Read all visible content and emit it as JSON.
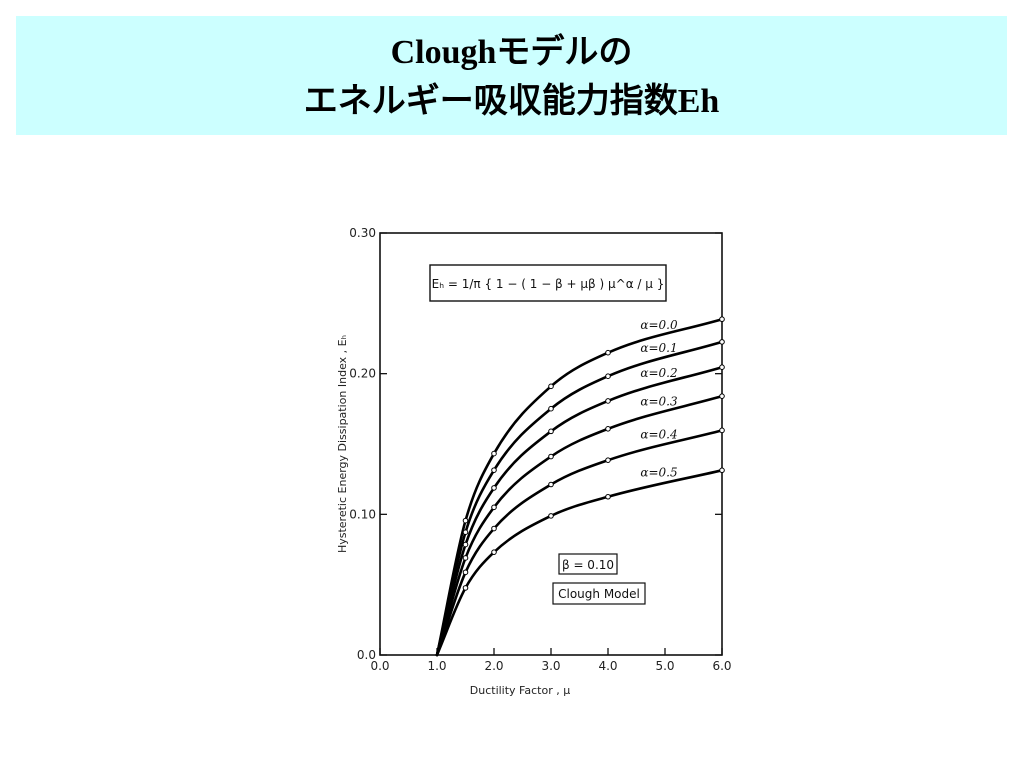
{
  "slide": {
    "title_line1": "Cloughモデルの",
    "title_line2": "エネルギー吸収能力指数Eh",
    "band_color": "#ccffff"
  },
  "chart_data": {
    "type": "line",
    "xlabel": "Ductility Factor , μ",
    "ylabel": "Hysteretic Energy Dissipation Index , Eₕ",
    "xlim": [
      0.0,
      6.0
    ],
    "ylim": [
      0.0,
      0.3
    ],
    "x_ticks": [
      "0.0",
      "1.0",
      "2.0",
      "3.0",
      "4.0",
      "5.0",
      "6.0"
    ],
    "y_ticks": [
      "0.0",
      "0.10",
      "0.20",
      "0.30"
    ],
    "grid": false,
    "formula": "Eₕ = 1/π { 1 − ( 1 − β + μβ ) μ^α / μ }",
    "beta_label": "β = 0.10",
    "model_label": "Clough Model",
    "x": [
      1.0,
      1.5,
      2.0,
      3.0,
      4.0,
      6.0
    ],
    "series": [
      {
        "name": "α=0.0",
        "values": [
          0.0,
          0.0955,
          0.1432,
          0.191,
          0.2149,
          0.2387
        ]
      },
      {
        "name": "α=0.1",
        "values": [
          0.0,
          0.0873,
          0.1314,
          0.1751,
          0.1982,
          0.2226
        ]
      },
      {
        "name": "α=0.2",
        "values": [
          0.0,
          0.0785,
          0.1188,
          0.159,
          0.1806,
          0.2046
        ]
      },
      {
        "name": "α=0.3",
        "values": [
          0.0,
          0.069,
          0.105,
          0.1411,
          0.1608,
          0.184
        ]
      },
      {
        "name": "α=0.4",
        "values": [
          0.0,
          0.0588,
          0.0899,
          0.1212,
          0.1385,
          0.1597
        ]
      },
      {
        "name": "α=0.5",
        "values": [
          0.0,
          0.0477,
          0.0731,
          0.0989,
          0.1125,
          0.1313
        ]
      }
    ]
  }
}
